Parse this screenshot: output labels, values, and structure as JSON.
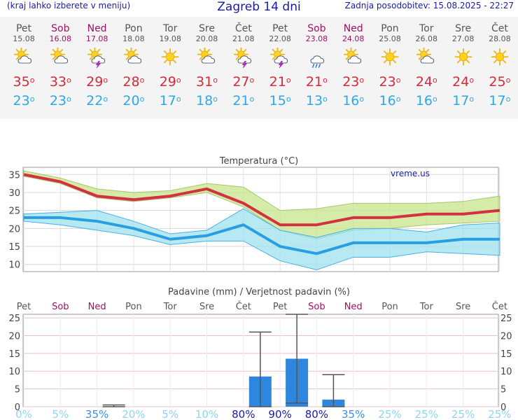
{
  "header": {
    "menu_hint": "(kraj lahko izberete v meniju)",
    "title": "Zagreb 14 dni",
    "updated": "Zadnja posodobitev: 15.08.2025 - 22:27"
  },
  "days": [
    {
      "name": "Pet",
      "date": "15.08",
      "weekend": false,
      "icon": "sun-cloud-icon",
      "max": "35",
      "min": "23"
    },
    {
      "name": "Sob",
      "date": "16.08",
      "weekend": true,
      "icon": "sun-cloud-icon",
      "max": "33",
      "min": "23"
    },
    {
      "name": "Ned",
      "date": "17.08",
      "weekend": true,
      "icon": "thunderstorm-icon",
      "max": "29",
      "min": "22"
    },
    {
      "name": "Pon",
      "date": "18.08",
      "weekend": false,
      "icon": "sun-cloud-icon",
      "max": "28",
      "min": "20"
    },
    {
      "name": "Tor",
      "date": "19.08",
      "weekend": false,
      "icon": "sun-icon",
      "max": "29",
      "min": "17"
    },
    {
      "name": "Sre",
      "date": "20.08",
      "weekend": false,
      "icon": "sun-cloud-icon",
      "max": "31",
      "min": "18"
    },
    {
      "name": "Čet",
      "date": "21.08",
      "weekend": false,
      "icon": "thunderstorm-icon",
      "max": "27",
      "min": "21"
    },
    {
      "name": "Pet",
      "date": "22.08",
      "weekend": false,
      "icon": "thunderstorm-icon",
      "max": "21",
      "min": "15"
    },
    {
      "name": "Sob",
      "date": "23.08",
      "weekend": true,
      "icon": "rain-cloud-icon",
      "max": "21",
      "min": "13"
    },
    {
      "name": "Ned",
      "date": "24.08",
      "weekend": true,
      "icon": "sun-cloud-icon",
      "max": "23",
      "min": "16"
    },
    {
      "name": "Pon",
      "date": "25.08",
      "weekend": false,
      "icon": "sun-icon",
      "max": "23",
      "min": "16"
    },
    {
      "name": "Tor",
      "date": "26.08",
      "weekend": false,
      "icon": "sun-cloud-icon",
      "max": "24",
      "min": "16"
    },
    {
      "name": "Sre",
      "date": "27.08",
      "weekend": false,
      "icon": "sun-icon",
      "max": "24",
      "min": "17"
    },
    {
      "name": "Čet",
      "date": "28.08",
      "weekend": false,
      "icon": "sun-icon",
      "max": "25",
      "min": "17"
    }
  ],
  "chart_data": [
    {
      "type": "line",
      "title": "Temperatura (°C)",
      "watermark": "vreme.us",
      "x": [
        "Pet",
        "Sob",
        "Ned",
        "Pon",
        "Tor",
        "Sre",
        "Čet",
        "Pet",
        "Sob",
        "Ned",
        "Pon",
        "Tor",
        "Sre",
        "Čet"
      ],
      "ylim": [
        8,
        37
      ],
      "yticks": [
        10,
        15,
        20,
        25,
        30,
        35
      ],
      "grid": true,
      "series": [
        {
          "values": [
            35,
            33,
            29,
            28,
            29,
            31,
            27,
            21,
            21,
            23,
            23,
            24,
            24,
            25
          ],
          "color": "#d33141"
        },
        {
          "values": [
            23,
            23,
            22,
            20,
            17,
            18,
            21,
            15,
            13,
            16,
            16,
            16,
            17,
            17
          ],
          "color": "#2b9ee2"
        }
      ],
      "max_band": {
        "upper": [
          36,
          34,
          31,
          30,
          30.5,
          32.5,
          31.5,
          25,
          25.5,
          27,
          27,
          27,
          27.5,
          29
        ],
        "lower": [
          34.5,
          32.5,
          28.5,
          27.5,
          28.5,
          30,
          26,
          19.5,
          17,
          19.5,
          20,
          21,
          21.5,
          22
        ],
        "color": "#c6e68a"
      },
      "min_band": {
        "upper": [
          24,
          24.5,
          25,
          22,
          18.5,
          19.5,
          25.5,
          19.5,
          17.5,
          20,
          20,
          19,
          21,
          21.5
        ],
        "lower": [
          22,
          21,
          19.5,
          18,
          15.5,
          16.5,
          16.5,
          11,
          8.5,
          12,
          12,
          13.5,
          13,
          12.5
        ],
        "color": "#9ee2ee"
      }
    },
    {
      "type": "bar",
      "title": "Padavine (mm) / Verjetnost padavin (%)",
      "x": [
        "Pet",
        "Sob",
        "Ned",
        "Pon",
        "Tor",
        "Sre",
        "Čet",
        "Pet",
        "Sob",
        "Ned",
        "Pon",
        "Tor",
        "Sre",
        "Čet"
      ],
      "ylim": [
        0,
        26
      ],
      "yticks": [
        0,
        5,
        10,
        15,
        20,
        25
      ],
      "values": [
        0,
        0,
        0,
        0,
        0,
        0,
        8.5,
        13.5,
        2,
        0,
        0,
        0,
        0,
        0
      ],
      "err_low": [
        0,
        0,
        0,
        0,
        0,
        0,
        0,
        1,
        0,
        0,
        0,
        0,
        0,
        0
      ],
      "err_high": [
        0,
        0,
        0.5,
        0,
        0,
        0,
        21,
        26,
        9,
        0,
        0,
        0,
        0,
        0
      ],
      "probability": [
        "0%",
        "5%",
        "35%",
        "20%",
        "5%",
        "10%",
        "80%",
        "90%",
        "80%",
        "35%",
        "25%",
        "25%",
        "25%",
        "25%"
      ],
      "bar_color": "#2f86df"
    }
  ]
}
